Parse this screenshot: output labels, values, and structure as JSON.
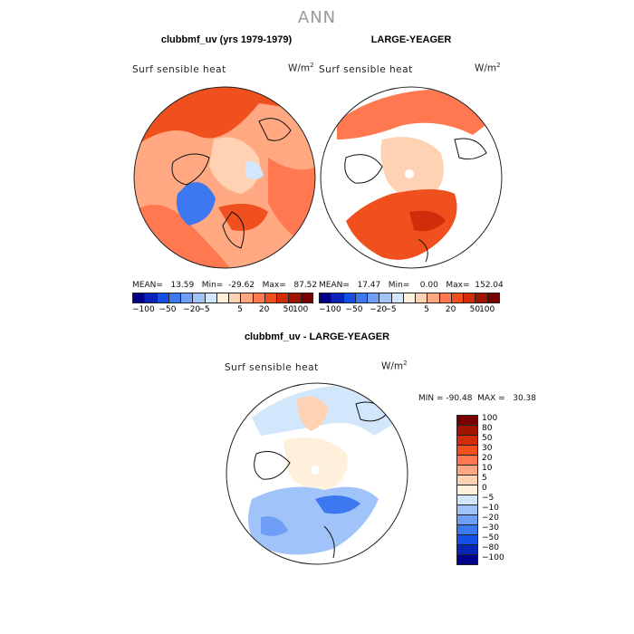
{
  "title": "ANN",
  "colors": {
    "diverging_scale": [
      "#00008b",
      "#0a24b8",
      "#1450e6",
      "#3c78f0",
      "#6e9ef5",
      "#a0c4fa",
      "#d2e6fc",
      "#fff0dc",
      "#ffd2b4",
      "#ffa882",
      "#ff7850",
      "#f0501e",
      "#d22d0a",
      "#a01400",
      "#780000"
    ],
    "land_outline": "#111111"
  },
  "panels": [
    {
      "title": "clubbmf_uv (yrs 1979-1979)",
      "variable": "Surf  sensible  heat",
      "units": "W/m",
      "units_exp": "2",
      "stats": "MEAN=   13.59   Min=  -29.62   Max=   87.52"
    },
    {
      "title": "LARGE-YEAGER",
      "variable": "Surf  sensible  heat",
      "units": "W/m",
      "units_exp": "2",
      "stats": "MEAN=   17.47   Min=    0.00   Max=  152.04"
    },
    {
      "title": "clubbmf_uv - LARGE-YEAGER",
      "variable": "Surf  sensible  heat",
      "units": "W/m",
      "units_exp": "2",
      "stats": "MIN = -90.48  MAX =   30.38"
    }
  ],
  "colorbar_top": {
    "labels": [
      "−100",
      "−50",
      "−20",
      "−5",
      "5",
      "20",
      "50",
      "100"
    ]
  },
  "colorbar_diff": {
    "labels": [
      "100",
      "80",
      "50",
      "30",
      "20",
      "10",
      "5",
      "0",
      "−5",
      "−10",
      "−20",
      "−30",
      "−50",
      "−80",
      "−100"
    ]
  }
}
